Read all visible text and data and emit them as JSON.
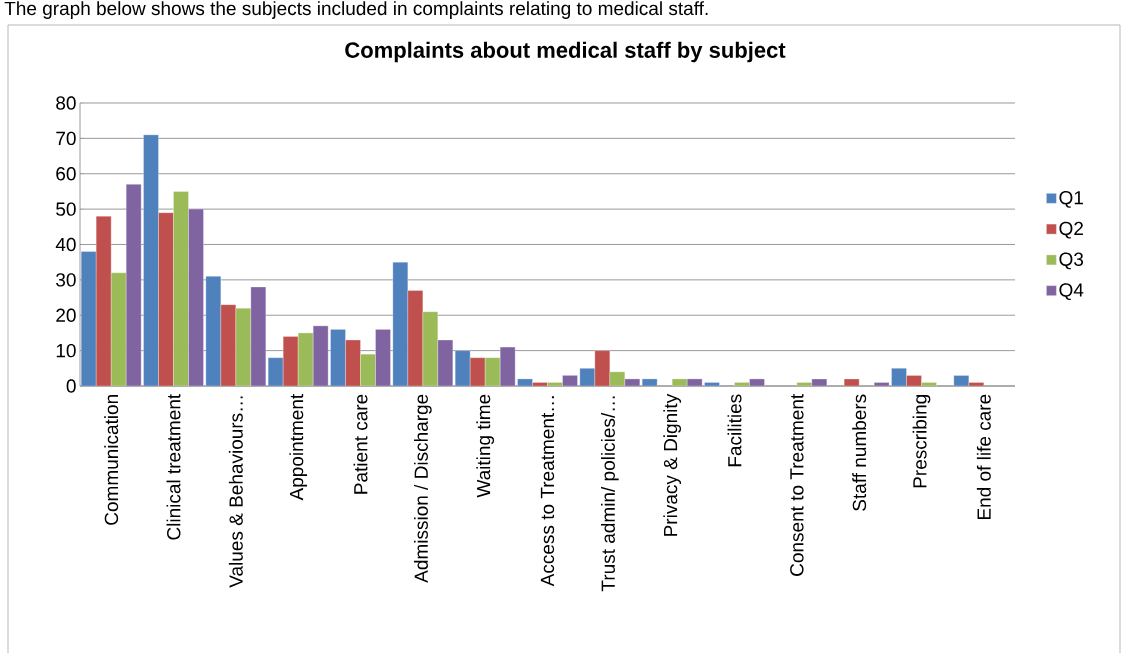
{
  "chart_data": {
    "type": "bar",
    "title": "Complaints about medical staff by subject",
    "annotations": [
      "The graph below shows the subjects included in complaints relating to medical staff."
    ],
    "categories": [
      "Communication",
      "Clinical treatment",
      "Values & Behaviours…",
      "Appointment",
      "Patient care",
      "Admission / Discharge",
      "Waiting time",
      "Access to Treatment…",
      "Trust admin/ policies/…",
      "Privacy & Dignity",
      "Facilities",
      "Consent to Treatment",
      "Staff numbers",
      "Prescribing",
      "End of life care"
    ],
    "series": [
      {
        "name": "Q1",
        "color": "#4f81bd",
        "values": [
          38,
          71,
          31,
          8,
          16,
          35,
          10,
          2,
          5,
          2,
          1,
          null,
          null,
          5,
          3
        ]
      },
      {
        "name": "Q2",
        "color": "#c0504d",
        "values": [
          48,
          49,
          23,
          14,
          13,
          27,
          8,
          1,
          10,
          null,
          null,
          null,
          2,
          3,
          1
        ]
      },
      {
        "name": "Q3",
        "color": "#9bbb59",
        "values": [
          32,
          55,
          22,
          15,
          9,
          21,
          8,
          1,
          4,
          2,
          1,
          1,
          null,
          1,
          null
        ]
      },
      {
        "name": "Q4",
        "color": "#8064a2",
        "values": [
          57,
          50,
          28,
          17,
          16,
          13,
          11,
          3,
          2,
          2,
          2,
          2,
          1,
          null,
          null
        ]
      }
    ],
    "ylim": [
      0,
      80
    ],
    "yticks": [
      0,
      10,
      20,
      30,
      40,
      50,
      60,
      70,
      80
    ],
    "grid": "y",
    "legend": "right"
  }
}
